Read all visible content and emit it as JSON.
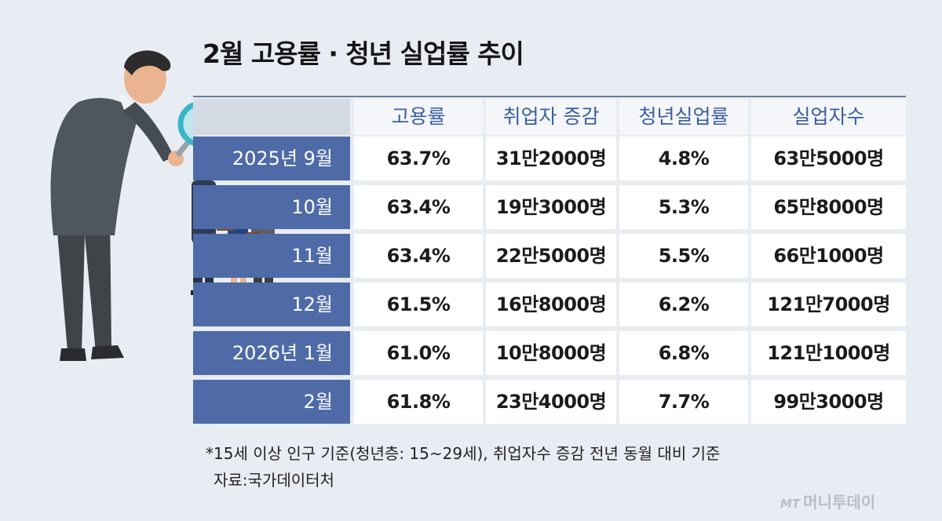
{
  "title": "2월 고용률 · 청년 실업률 추이",
  "chart_data": {
    "type": "table",
    "columns": [
      "고용률",
      "취업자 증감",
      "청년실업률",
      "실업자수"
    ],
    "rows": [
      {
        "label": "2025년 9월",
        "values": [
          "63.7%",
          "31만2000명",
          "4.8%",
          "63만5000명"
        ]
      },
      {
        "label": "10월",
        "values": [
          "63.4%",
          "19만3000명",
          "5.3%",
          "65만8000명"
        ]
      },
      {
        "label": "11월",
        "values": [
          "63.4%",
          "22만5000명",
          "5.5%",
          "66만1000명"
        ]
      },
      {
        "label": "12월",
        "values": [
          "61.5%",
          "16만8000명",
          "6.2%",
          "121만7000명"
        ]
      },
      {
        "label": "2026년 1월",
        "values": [
          "61.0%",
          "10만8000명",
          "6.8%",
          "121만1000명"
        ]
      },
      {
        "label": "2월",
        "values": [
          "61.8%",
          "23만4000명",
          "7.7%",
          "99만3000명"
        ]
      }
    ]
  },
  "footnote": "*15세 이상 인구 기준(청년층: 15~29세), 취업자수 증감 전년 동월 대비 기준",
  "source": "자료:국가데이터처",
  "logo": {
    "mt": "MT",
    "name": "머니투데이"
  },
  "colors": {
    "row_label_bg": "#4e6ba8",
    "header_text": "#3a5f9e",
    "background": "#e8edf3"
  },
  "illustration": {
    "icon": "businessman-with-magnifier-icon",
    "group_icon": "job-seekers-group-icon"
  }
}
